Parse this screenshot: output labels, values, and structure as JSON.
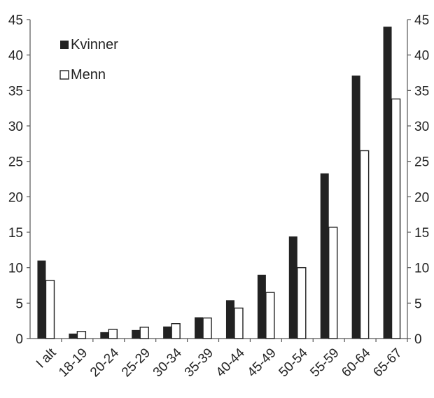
{
  "chart_data": {
    "type": "bar",
    "title": "",
    "xlabel": "",
    "ylabel": "",
    "ylim": [
      0,
      45
    ],
    "yticks": [
      0,
      5,
      10,
      15,
      20,
      25,
      30,
      35,
      40,
      45
    ],
    "y_axis_right": true,
    "grid": false,
    "legend_position": "top-left",
    "categories": [
      "I alt",
      "18-19",
      "20-24",
      "25-29",
      "30-34",
      "35-39",
      "40-44",
      "45-49",
      "50-54",
      "55-59",
      "60-64",
      "65-67"
    ],
    "series": [
      {
        "name": "Kvinner",
        "color": "#222222",
        "fill": "solid",
        "values": [
          11.0,
          0.7,
          0.9,
          1.2,
          1.7,
          3.0,
          5.4,
          9.0,
          14.4,
          23.3,
          37.1,
          44.0
        ]
      },
      {
        "name": "Menn",
        "color": "#ffffff",
        "fill": "hollow",
        "values": [
          8.2,
          1.0,
          1.3,
          1.6,
          2.1,
          2.9,
          4.3,
          6.5,
          10.0,
          15.7,
          26.5,
          33.8
        ]
      }
    ]
  }
}
